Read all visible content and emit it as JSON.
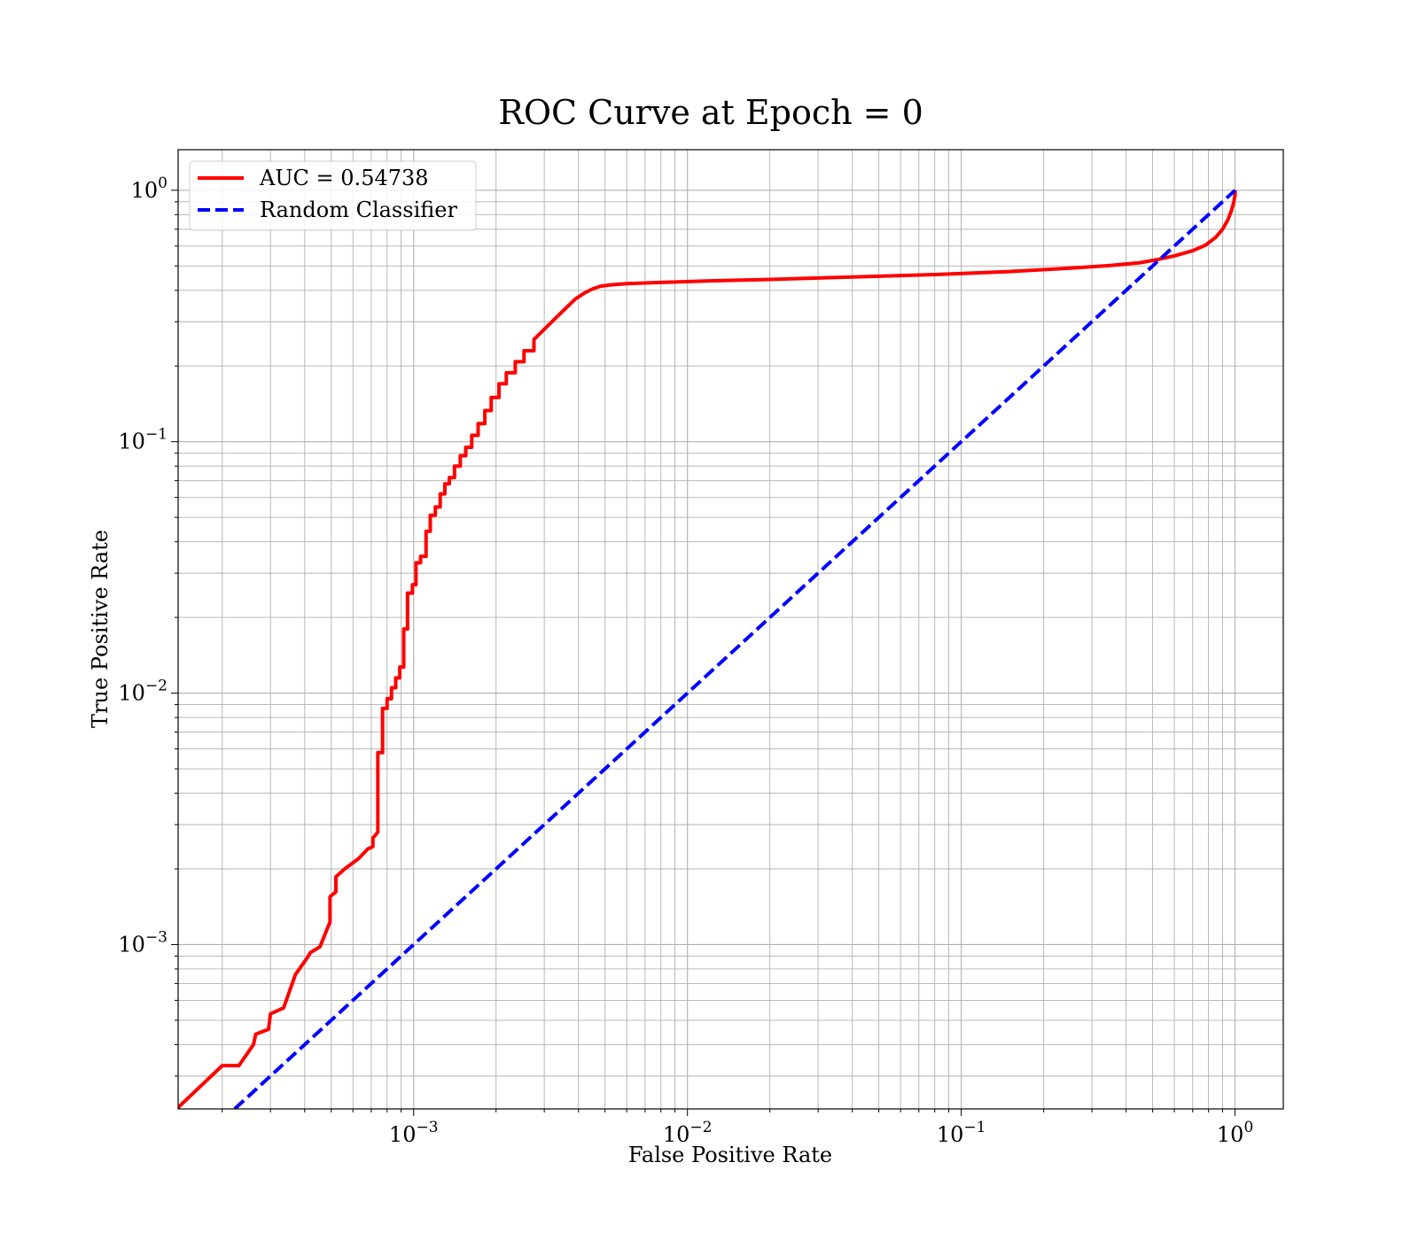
{
  "chart_data": {
    "type": "line",
    "title": "ROC Curve at Epoch = 0",
    "xlabel": "False Positive Rate",
    "ylabel": "True Positive Rate",
    "xscale": "log",
    "yscale": "log",
    "xlim": [
      0.000138,
      1.5
    ],
    "ylim": [
      0.000222,
      1.45
    ],
    "grid": "major and minor",
    "legend_position": "top-left",
    "x_ticks": [
      {
        "value": 0.001,
        "base": "10",
        "exp": "−3"
      },
      {
        "value": 0.01,
        "base": "10",
        "exp": "−2"
      },
      {
        "value": 0.1,
        "base": "10",
        "exp": "−1"
      },
      {
        "value": 1,
        "base": "10",
        "exp": "0"
      }
    ],
    "y_ticks": [
      {
        "value": 0.001,
        "base": "10",
        "exp": "−3"
      },
      {
        "value": 0.01,
        "base": "10",
        "exp": "−2"
      },
      {
        "value": 0.1,
        "base": "10",
        "exp": "−1"
      },
      {
        "value": 1,
        "base": "10",
        "exp": "0"
      }
    ],
    "series": [
      {
        "name": "AUC = 0.54738",
        "color": "#ff0000",
        "style": "solid",
        "x": [
          0.000138,
          0.0002,
          0.00023,
          0.00026,
          0.000265,
          0.000295,
          0.0003,
          0.000335,
          0.00037,
          0.00041,
          0.00042,
          0.000455,
          0.000495,
          0.000495,
          0.00052,
          0.00052,
          0.00056,
          0.00063,
          0.00068,
          0.00071,
          0.00071,
          0.00074,
          0.00074,
          0.00077,
          0.00077,
          0.0008,
          0.0008,
          0.00083,
          0.00083,
          0.00086,
          0.00086,
          0.00089,
          0.00089,
          0.00092,
          0.00092,
          0.00095,
          0.00095,
          0.00099,
          0.00099,
          0.00102,
          0.00102,
          0.00106,
          0.00106,
          0.00111,
          0.00111,
          0.00115,
          0.00115,
          0.0012,
          0.0012,
          0.00125,
          0.00125,
          0.0013,
          0.0013,
          0.00135,
          0.00135,
          0.00141,
          0.00141,
          0.00148,
          0.00148,
          0.00155,
          0.00155,
          0.00163,
          0.00163,
          0.00172,
          0.00172,
          0.00182,
          0.00182,
          0.00192,
          0.00192,
          0.00205,
          0.00205,
          0.00218,
          0.00218,
          0.00235,
          0.00235,
          0.00253,
          0.00253,
          0.00275,
          0.00275,
          0.003,
          0.0033,
          0.0036,
          0.0039,
          0.0042,
          0.0045,
          0.0048,
          0.0052,
          0.006,
          0.008,
          0.012,
          0.02,
          0.04,
          0.08,
          0.15,
          0.25,
          0.35,
          0.45,
          0.52,
          0.6,
          0.7,
          0.78,
          0.85,
          0.9,
          0.94,
          0.97,
          0.99,
          1.0,
          1.0
        ],
        "y": [
          0.000225,
          0.00033,
          0.00033,
          0.0004,
          0.00044,
          0.00046,
          0.00053,
          0.00056,
          0.00076,
          0.00089,
          0.00093,
          0.00098,
          0.00123,
          0.00155,
          0.00162,
          0.00186,
          0.002,
          0.0022,
          0.0024,
          0.00245,
          0.00265,
          0.0028,
          0.0058,
          0.0058,
          0.0087,
          0.0087,
          0.0095,
          0.0095,
          0.0105,
          0.0105,
          0.0115,
          0.0115,
          0.0127,
          0.0127,
          0.018,
          0.018,
          0.025,
          0.025,
          0.027,
          0.027,
          0.033,
          0.033,
          0.035,
          0.035,
          0.044,
          0.044,
          0.051,
          0.051,
          0.055,
          0.055,
          0.062,
          0.062,
          0.068,
          0.068,
          0.072,
          0.072,
          0.08,
          0.08,
          0.088,
          0.088,
          0.095,
          0.095,
          0.106,
          0.106,
          0.118,
          0.118,
          0.133,
          0.133,
          0.15,
          0.15,
          0.17,
          0.17,
          0.188,
          0.188,
          0.208,
          0.208,
          0.23,
          0.23,
          0.255,
          0.28,
          0.31,
          0.34,
          0.37,
          0.39,
          0.405,
          0.415,
          0.42,
          0.425,
          0.43,
          0.436,
          0.442,
          0.452,
          0.462,
          0.475,
          0.49,
          0.502,
          0.515,
          0.53,
          0.548,
          0.575,
          0.605,
          0.65,
          0.7,
          0.76,
          0.83,
          0.9,
          0.96,
          1.0
        ]
      },
      {
        "name": "Random Classifier",
        "color": "#0000ff",
        "style": "dashed",
        "x": [
          0.000222,
          1.0
        ],
        "y": [
          0.000222,
          1.0
        ]
      }
    ]
  }
}
